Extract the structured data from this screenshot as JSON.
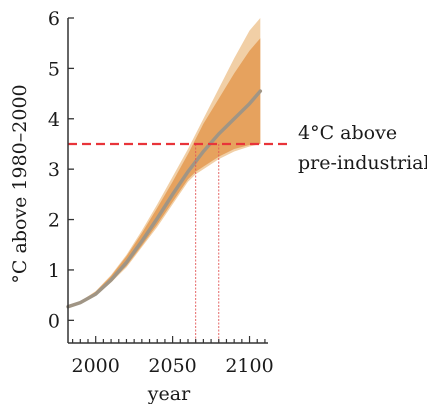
{
  "chart_data": {
    "type": "area",
    "xlabel": "year",
    "ylabel": "°C above 1980–2000",
    "xlim": [
      1982,
      2112
    ],
    "ylim": [
      -0.45,
      6
    ],
    "xticks": [
      2000,
      2050,
      2100
    ],
    "yticks": [
      0,
      1,
      2,
      3,
      4,
      5,
      6
    ],
    "x_minor_tick_step": 5,
    "grid": false,
    "legend": "none",
    "colors": {
      "outer_band": "#f1cfa6",
      "inner_band": "#e6a25e",
      "median_line": "#a09585",
      "threshold_line": "#e8343a",
      "crossing_lines": "#e25555",
      "axis": "#333333"
    },
    "series": [
      {
        "role": "outer_range",
        "x": [
          1982,
          1990,
          2000,
          2010,
          2020,
          2030,
          2040,
          2050,
          2060,
          2065,
          2070,
          2080,
          2090,
          2100,
          2107
        ],
        "lower": [
          0.25,
          0.33,
          0.5,
          0.75,
          1.05,
          1.45,
          1.85,
          2.3,
          2.75,
          2.9,
          3.0,
          3.2,
          3.35,
          3.45,
          3.5
        ],
        "upper": [
          0.3,
          0.38,
          0.58,
          0.9,
          1.3,
          1.78,
          2.3,
          2.85,
          3.4,
          3.7,
          4.0,
          4.6,
          5.2,
          5.75,
          6.0
        ]
      },
      {
        "role": "inner_range",
        "x": [
          1982,
          1990,
          2000,
          2010,
          2020,
          2030,
          2040,
          2050,
          2060,
          2065,
          2070,
          2080,
          2090,
          2100,
          2107
        ],
        "lower": [
          0.25,
          0.33,
          0.5,
          0.77,
          1.08,
          1.48,
          1.9,
          2.35,
          2.8,
          2.95,
          3.05,
          3.25,
          3.4,
          3.48,
          3.5
        ],
        "upper": [
          0.29,
          0.37,
          0.57,
          0.88,
          1.27,
          1.73,
          2.23,
          2.75,
          3.3,
          3.6,
          3.9,
          4.4,
          4.9,
          5.35,
          5.6
        ]
      },
      {
        "role": "median",
        "x": [
          1982,
          1990,
          2000,
          2010,
          2020,
          2030,
          2040,
          2050,
          2060,
          2065,
          2070,
          2080,
          2090,
          2100,
          2107
        ],
        "values": [
          0.27,
          0.35,
          0.52,
          0.8,
          1.15,
          1.57,
          2.02,
          2.5,
          2.95,
          3.15,
          3.35,
          3.7,
          4.0,
          4.3,
          4.55
        ]
      }
    ],
    "threshold": {
      "value": 3.5,
      "label_line1": "4°C above",
      "label_line2": "pre-industrial"
    },
    "crossing_years": [
      2065,
      2080
    ]
  }
}
